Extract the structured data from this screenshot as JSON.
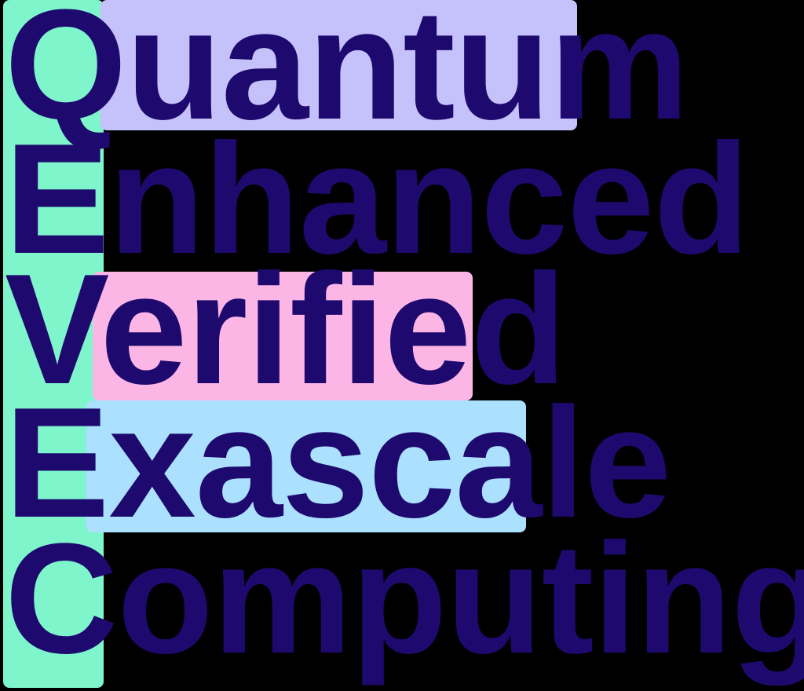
{
  "colors": {
    "background": "#000000",
    "text": "#1e0a6e",
    "acronym_column": "#7ff5cc",
    "quantum_highlight": "#c5c1fb",
    "verified_highlight": "#fcb6e6",
    "exascale_highlight": "#abe0ff"
  },
  "words": [
    {
      "initial": "Q",
      "rest": "uantum"
    },
    {
      "initial": "E",
      "rest": "nhanced"
    },
    {
      "initial": "V",
      "rest": "erified"
    },
    {
      "initial": "E",
      "rest": "xascale"
    },
    {
      "initial": "C",
      "rest": "omputing"
    }
  ]
}
